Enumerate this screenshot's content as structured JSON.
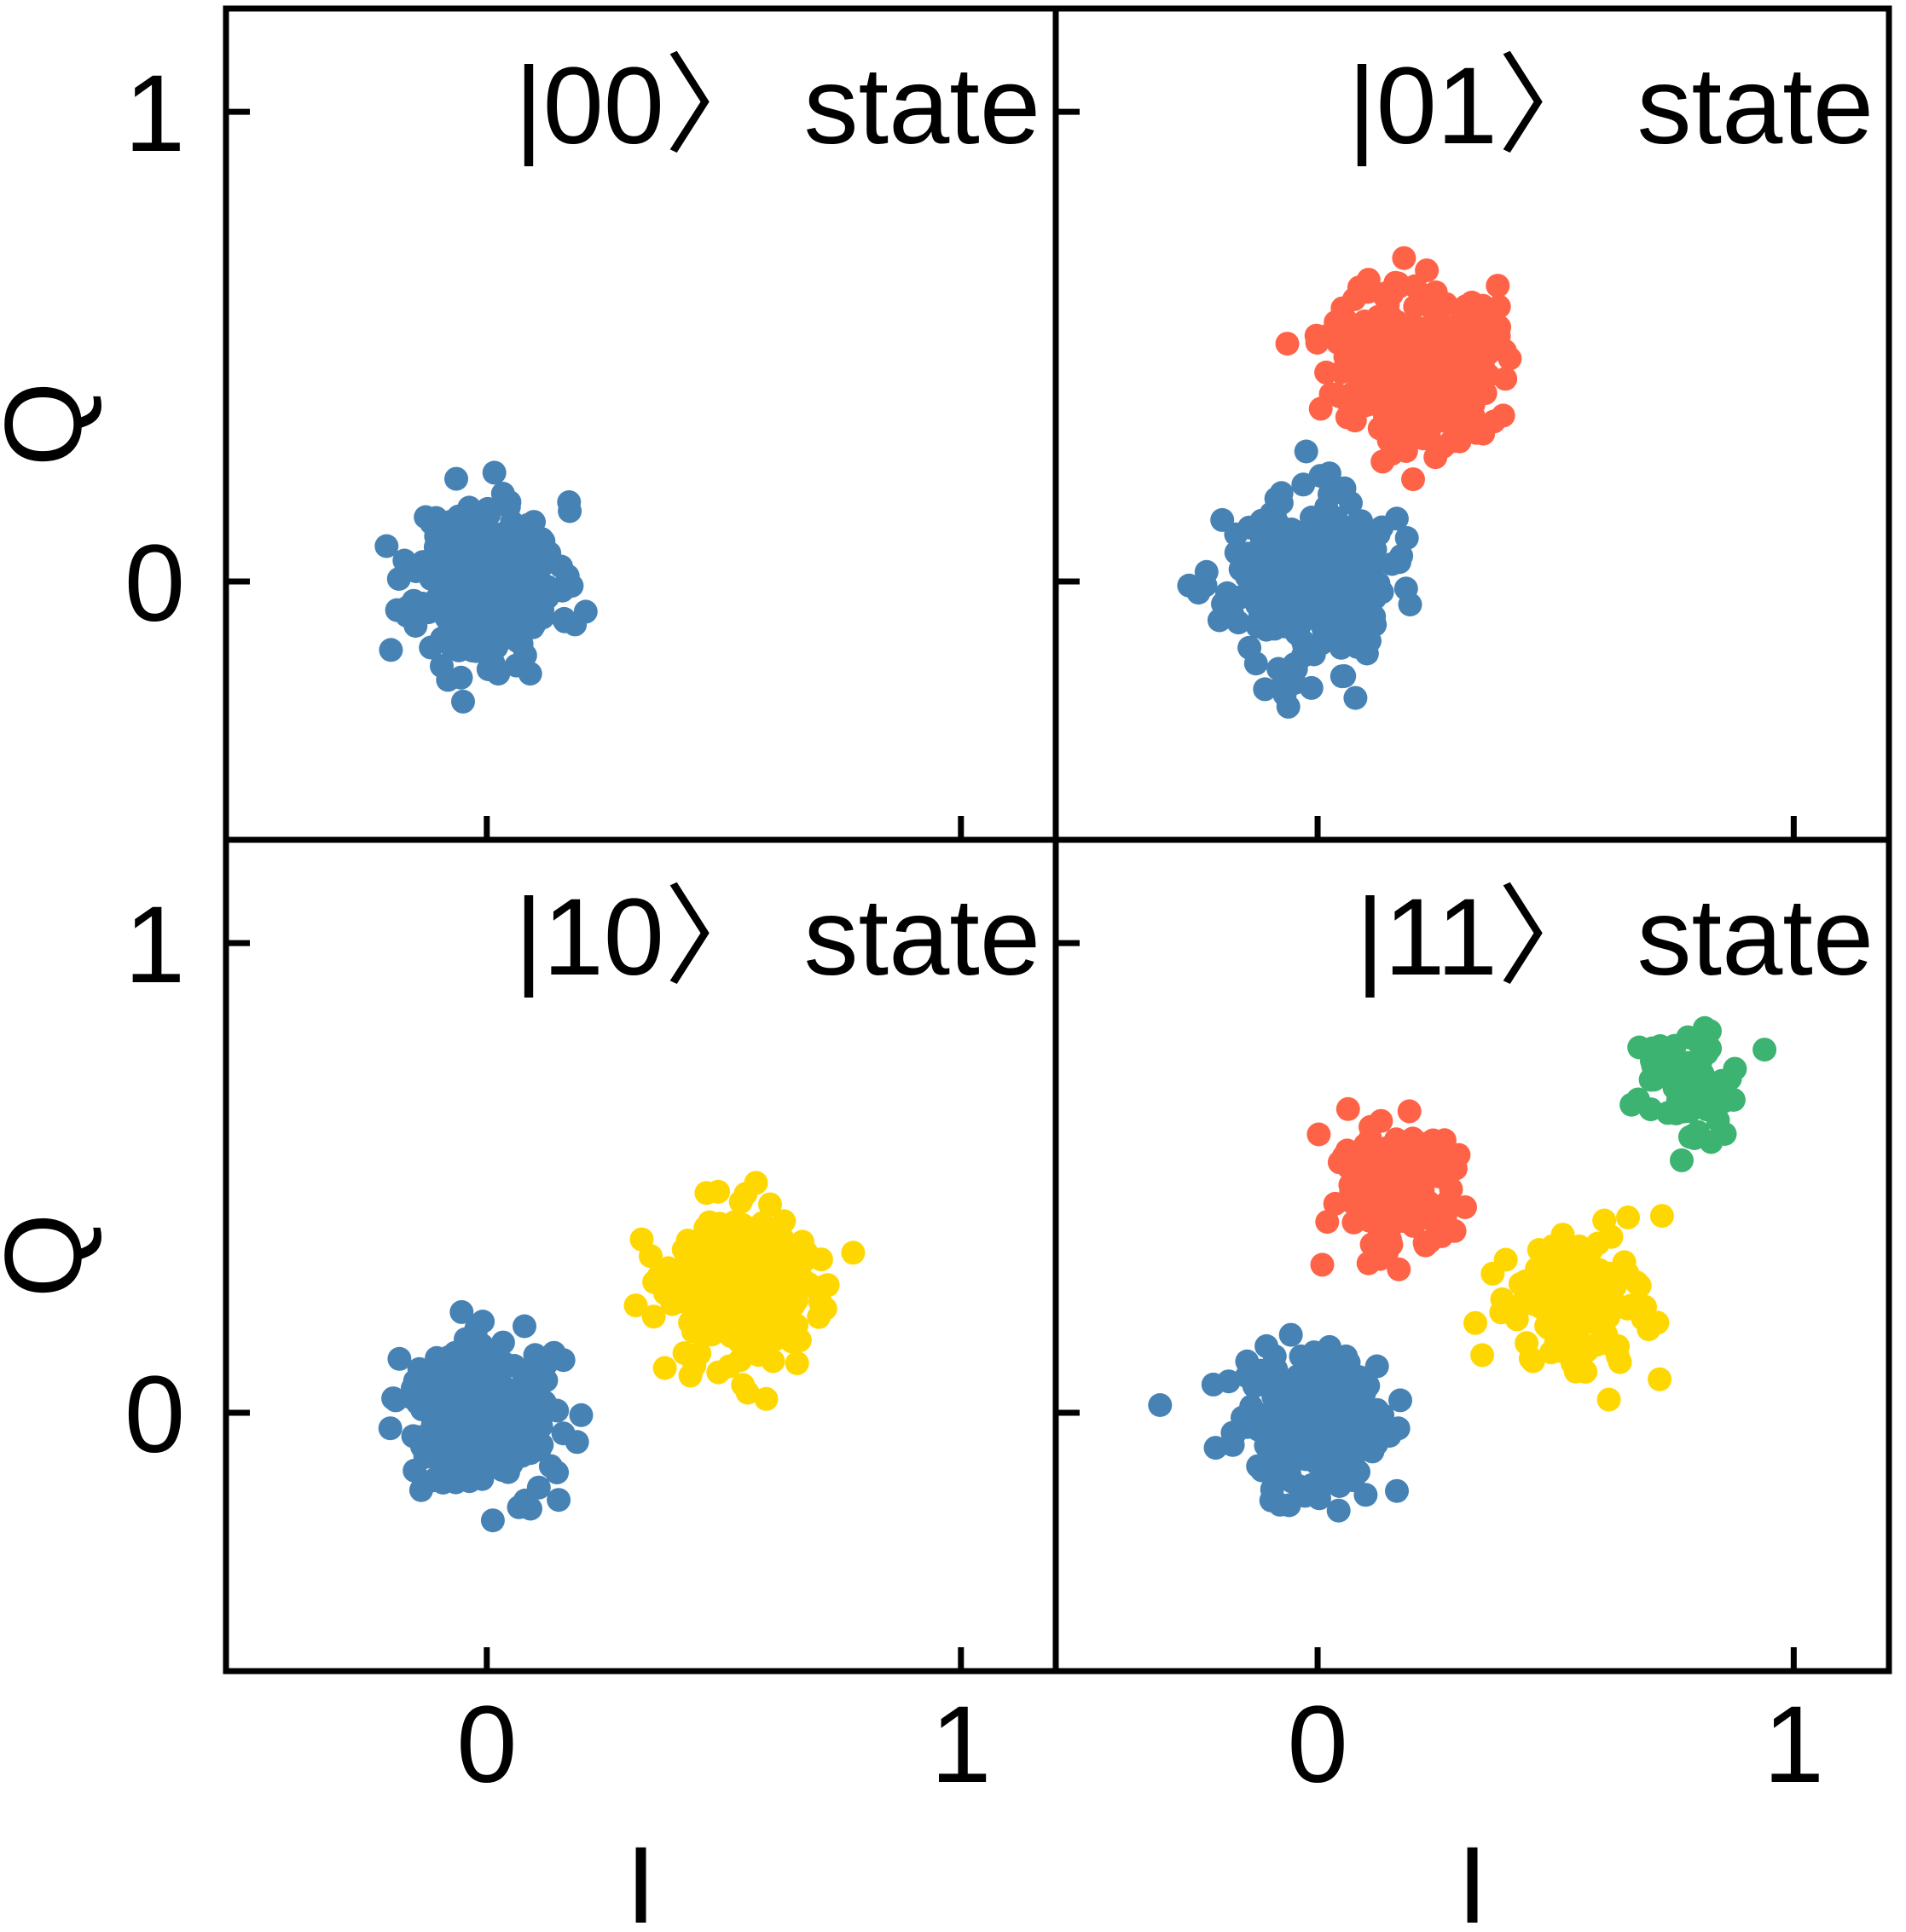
{
  "colors": {
    "blue": "#4682B4",
    "red": "#FF6347",
    "yellow": "#FFD700",
    "green": "#3CB371",
    "axis": "#000000"
  },
  "chart_data": [
    {
      "type": "scatter",
      "title": "|00〉 state",
      "xlim": [
        -0.55,
        1.2
      ],
      "ylim": [
        -0.55,
        1.22
      ],
      "xticks": [
        0,
        1
      ],
      "yticks": [
        0,
        1
      ],
      "xlabel": "",
      "ylabel": "Q",
      "series": [
        {
          "color": "blue",
          "center": [
            0.0,
            0.0
          ],
          "spread": [
            0.075,
            0.085
          ],
          "n": 320,
          "seed": 11
        }
      ]
    },
    {
      "type": "scatter",
      "title": "|01〉 state",
      "xlim": [
        -0.55,
        1.2
      ],
      "ylim": [
        -0.55,
        1.22
      ],
      "xticks": [
        0,
        1
      ],
      "yticks": [
        0,
        1
      ],
      "xlabel": "",
      "ylabel": "",
      "series": [
        {
          "color": "blue",
          "center": [
            -0.02,
            0.0
          ],
          "spread": [
            0.085,
            0.09
          ],
          "n": 300,
          "seed": 23
        },
        {
          "color": "red",
          "center": [
            0.2,
            0.47
          ],
          "spread": [
            0.085,
            0.09
          ],
          "n": 300,
          "seed": 37
        }
      ]
    },
    {
      "type": "scatter",
      "title": "|10〉 state",
      "xlim": [
        -0.55,
        1.2
      ],
      "ylim": [
        -0.55,
        1.22
      ],
      "xticks": [
        0,
        1
      ],
      "yticks": [
        0,
        1
      ],
      "xlabel": "I",
      "ylabel": "Q",
      "series": [
        {
          "color": "blue",
          "center": [
            -0.01,
            0.0
          ],
          "spread": [
            0.08,
            0.08
          ],
          "n": 300,
          "seed": 41
        },
        {
          "color": "yellow",
          "center": [
            0.54,
            0.27
          ],
          "spread": [
            0.085,
            0.08
          ],
          "n": 300,
          "seed": 53
        }
      ]
    },
    {
      "type": "scatter",
      "title": "|11〉 state",
      "xlim": [
        -0.55,
        1.2
      ],
      "ylim": [
        -0.55,
        1.22
      ],
      "xticks": [
        0,
        1
      ],
      "yticks": [
        0,
        1
      ],
      "xlabel": "I",
      "ylabel": "",
      "series": [
        {
          "color": "blue",
          "center": [
            -0.01,
            -0.02
          ],
          "spread": [
            0.08,
            0.075
          ],
          "n": 260,
          "seed": 61
        },
        {
          "color": "red",
          "center": [
            0.17,
            0.47
          ],
          "spread": [
            0.075,
            0.075
          ],
          "n": 160,
          "seed": 71
        },
        {
          "color": "yellow",
          "center": [
            0.54,
            0.23
          ],
          "spread": [
            0.075,
            0.075
          ],
          "n": 140,
          "seed": 83
        },
        {
          "color": "green",
          "center": [
            0.77,
            0.7
          ],
          "spread": [
            0.055,
            0.055
          ],
          "n": 110,
          "seed": 97
        }
      ]
    }
  ]
}
